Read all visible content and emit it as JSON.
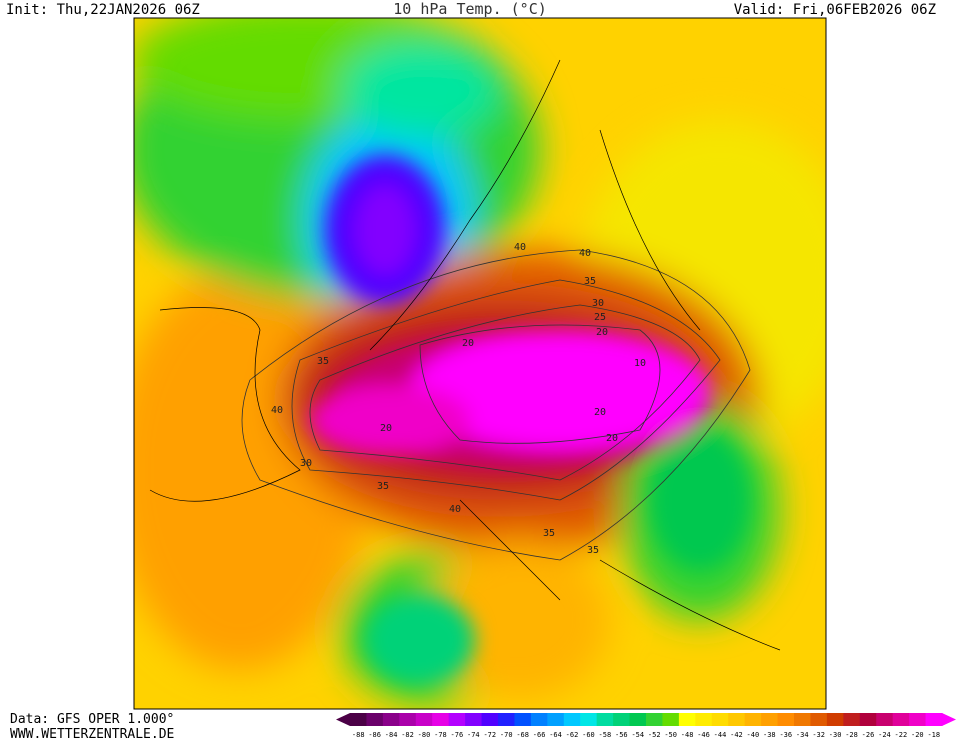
{
  "header": {
    "init": "Init: Thu,22JAN2026 06Z",
    "title": "10 hPa Temp. (°C)",
    "valid": "Valid: Fri,06FEB2026 06Z"
  },
  "footer": {
    "data_source": "Data: GFS OPER 1.000°",
    "website": "WWW.WETTERZENTRALE.DE"
  },
  "colorbar": {
    "labels": [
      -88,
      -86,
      -84,
      -82,
      -80,
      -78,
      -76,
      -74,
      -72,
      -70,
      -68,
      -66,
      -64,
      -62,
      -60,
      -58,
      -56,
      -54,
      -52,
      -50,
      -48,
      -46,
      -44,
      -42,
      -40,
      -38,
      -36,
      -34,
      -32,
      -30,
      -28,
      -26,
      -24,
      -22,
      -20,
      -18
    ],
    "colors": [
      "#4b0046",
      "#6a006a",
      "#8a008a",
      "#aa00aa",
      "#c800c8",
      "#e600e6",
      "#b400ff",
      "#8200ff",
      "#5000ff",
      "#2020ff",
      "#0050ff",
      "#0080ff",
      "#00a0ff",
      "#00c8ff",
      "#00e6e6",
      "#00dca0",
      "#00d278",
      "#00c850",
      "#32d232",
      "#64dc00",
      "#ffff00",
      "#ffec00",
      "#ffdc00",
      "#ffc800",
      "#ffb400",
      "#ffa000",
      "#ff8c00",
      "#f07800",
      "#e05a00",
      "#d03c00",
      "#c01e1e",
      "#b0003c",
      "#c8006e",
      "#e0009a",
      "#f000c8",
      "#ff00ff"
    ]
  },
  "map": {
    "contour_labels": [
      "40",
      "35",
      "30",
      "25",
      "20",
      "10",
      "20",
      "20",
      "35",
      "40",
      "35",
      "35",
      "40",
      "30",
      "20",
      "35",
      "40",
      "20"
    ]
  }
}
